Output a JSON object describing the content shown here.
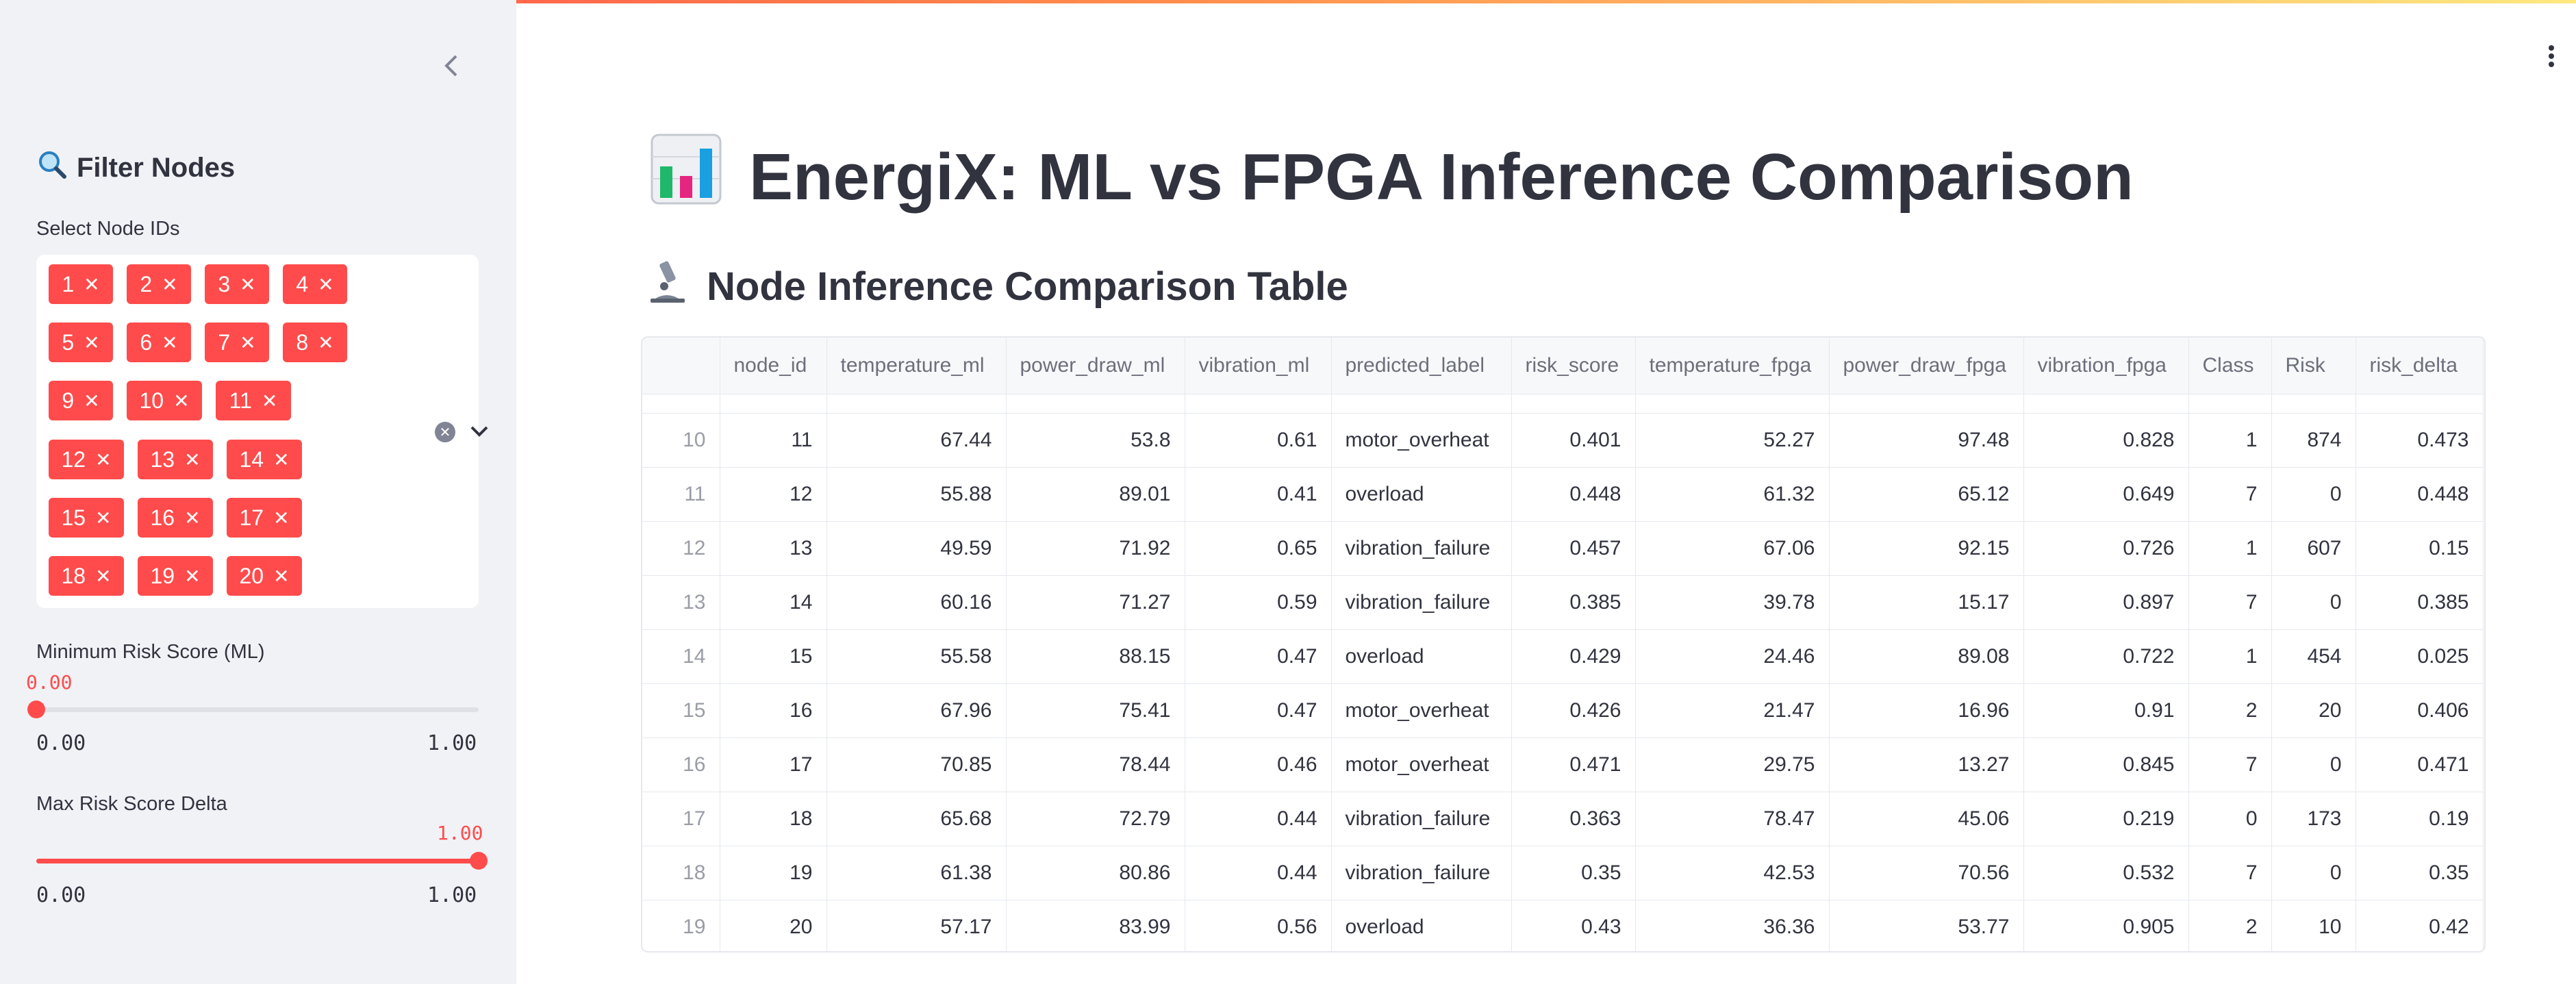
{
  "colors": {
    "accent": "#ff4b4b",
    "sidebar_bg": "#f0f2f6"
  },
  "sidebar": {
    "collapse_icon": "chevron-left-icon",
    "title": "Filter Nodes",
    "title_icon": "magnifier-icon",
    "node_select": {
      "label": "Select Node IDs",
      "chips": [
        "1",
        "2",
        "3",
        "4",
        "5",
        "6",
        "7",
        "8",
        "9",
        "10",
        "11",
        "12",
        "13",
        "14",
        "15",
        "16",
        "17",
        "18",
        "19",
        "20"
      ]
    },
    "min_risk": {
      "label": "Minimum Risk Score (ML)",
      "value": "0.00",
      "value_fraction": 0.0,
      "min": "0.00",
      "max": "1.00"
    },
    "max_delta": {
      "label": "Max Risk Score Delta",
      "value": "1.00",
      "value_fraction": 1.0,
      "min": "0.00",
      "max": "1.00"
    }
  },
  "header": {
    "menu_icon": "kebab-menu-icon"
  },
  "main": {
    "title": "EnergiX: ML vs FPGA Inference Comparison",
    "title_icon": "bar-chart-icon",
    "table_title": "Node Inference Comparison Table",
    "table_icon": "microscope-icon"
  },
  "table": {
    "columns": [
      "",
      "node_id",
      "temperature_ml",
      "power_draw_ml",
      "vibration_ml",
      "predicted_label",
      "risk_score",
      "temperature_fpga",
      "power_draw_fpga",
      "vibration_fpga",
      "Class",
      "Risk",
      "risk_delta"
    ],
    "rows": [
      [
        "10",
        "11",
        "67.44",
        "53.8",
        "0.61",
        "motor_overheat",
        "0.401",
        "52.27",
        "97.48",
        "0.828",
        "1",
        "874",
        "0.473"
      ],
      [
        "11",
        "12",
        "55.88",
        "89.01",
        "0.41",
        "overload",
        "0.448",
        "61.32",
        "65.12",
        "0.649",
        "7",
        "0",
        "0.448"
      ],
      [
        "12",
        "13",
        "49.59",
        "71.92",
        "0.65",
        "vibration_failure",
        "0.457",
        "67.06",
        "92.15",
        "0.726",
        "1",
        "607",
        "0.15"
      ],
      [
        "13",
        "14",
        "60.16",
        "71.27",
        "0.59",
        "vibration_failure",
        "0.385",
        "39.78",
        "15.17",
        "0.897",
        "7",
        "0",
        "0.385"
      ],
      [
        "14",
        "15",
        "55.58",
        "88.15",
        "0.47",
        "overload",
        "0.429",
        "24.46",
        "89.08",
        "0.722",
        "1",
        "454",
        "0.025"
      ],
      [
        "15",
        "16",
        "67.96",
        "75.41",
        "0.47",
        "motor_overheat",
        "0.426",
        "21.47",
        "16.96",
        "0.91",
        "2",
        "20",
        "0.406"
      ],
      [
        "16",
        "17",
        "70.85",
        "78.44",
        "0.46",
        "motor_overheat",
        "0.471",
        "29.75",
        "13.27",
        "0.845",
        "7",
        "0",
        "0.471"
      ],
      [
        "17",
        "18",
        "65.68",
        "72.79",
        "0.44",
        "vibration_failure",
        "0.363",
        "78.47",
        "45.06",
        "0.219",
        "0",
        "173",
        "0.19"
      ],
      [
        "18",
        "19",
        "61.38",
        "80.86",
        "0.44",
        "vibration_failure",
        "0.35",
        "42.53",
        "70.56",
        "0.532",
        "7",
        "0",
        "0.35"
      ],
      [
        "19",
        "20",
        "57.17",
        "83.99",
        "0.56",
        "overload",
        "0.43",
        "36.36",
        "53.77",
        "0.905",
        "2",
        "10",
        "0.42"
      ]
    ]
  }
}
